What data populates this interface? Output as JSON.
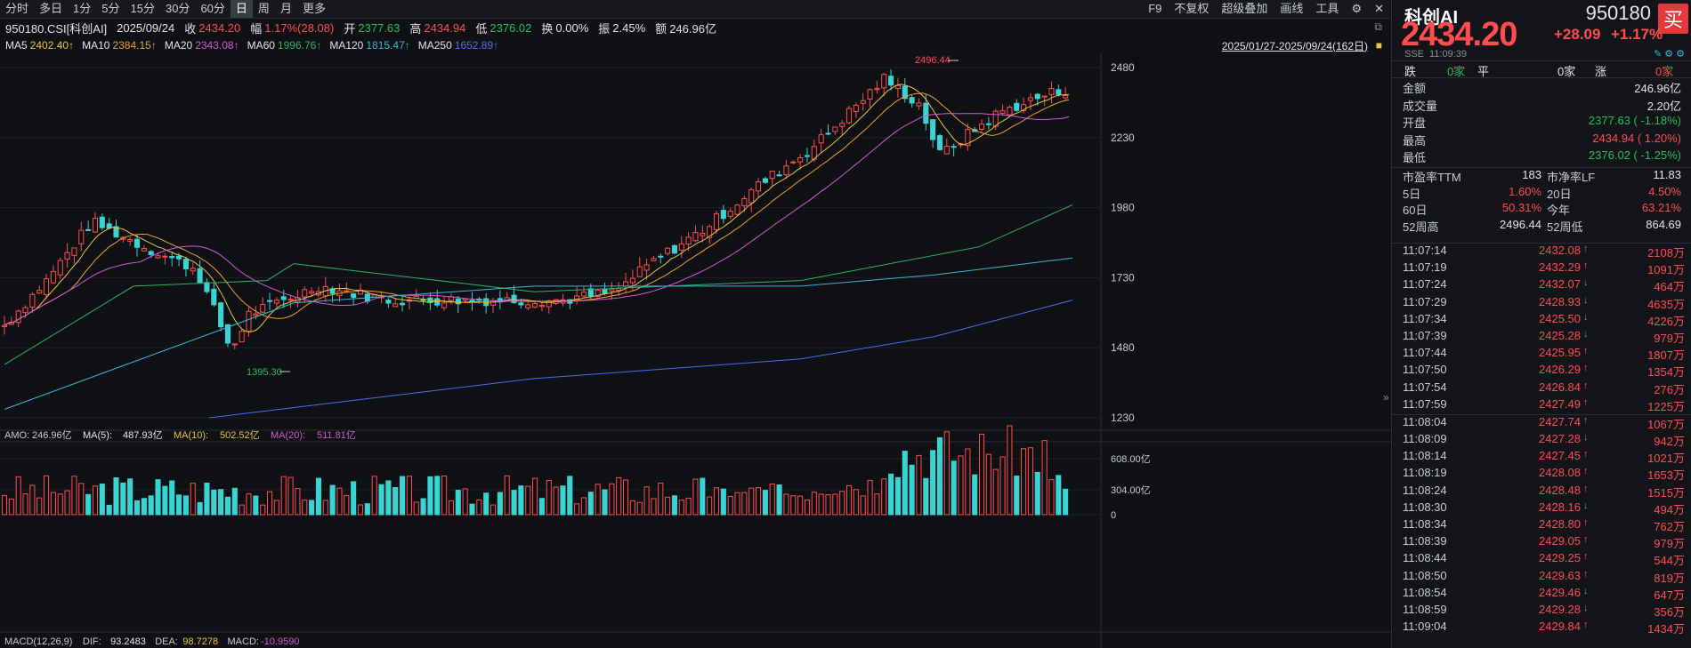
{
  "toolbar": {
    "periods": [
      "分时",
      "多日",
      "1分",
      "5分",
      "15分",
      "30分",
      "60分",
      "日",
      "周",
      "月",
      "更多"
    ],
    "active_period": "日",
    "right": [
      "F9",
      "不复权",
      "超级叠加",
      "画线",
      "工具"
    ]
  },
  "quote": {
    "code": "950180.CSI[科创AI]",
    "date": "2025/09/24",
    "close_label": "收",
    "close": "2434.20",
    "chg_label": "幅",
    "chg": "1.17%(28.08)",
    "open_label": "开",
    "open": "2377.63",
    "high_label": "高",
    "high": "2434.94",
    "low_label": "低",
    "low": "2376.02",
    "turnover_label": "换",
    "turnover": "0.00%",
    "amp_label": "振",
    "amp": "2.45%",
    "amount_label": "额",
    "amount": "246.96亿"
  },
  "ma_legend": {
    "items": [
      {
        "label": "MA5",
        "value": "2402.40↑",
        "color": "#e8c547"
      },
      {
        "label": "MA10",
        "value": "2384.15↑",
        "color": "#f0a030"
      },
      {
        "label": "MA20",
        "value": "2343.08↑",
        "color": "#d35ad6"
      },
      {
        "label": "MA60",
        "value": "1996.76↑",
        "color": "#2fb36a"
      },
      {
        "label": "MA120",
        "value": "1815.47↑",
        "color": "#3bb7d8"
      },
      {
        "label": "MA250",
        "value": "1652.89↑",
        "color": "#4f6ef0"
      }
    ],
    "range": "2025/01/27-2025/09/24(162日)"
  },
  "chart_data": {
    "type": "candlestick",
    "y_ticks": [
      "2480",
      "2230",
      "1980",
      "1730",
      "1480",
      "1230"
    ],
    "ylim": [
      1230,
      2480
    ],
    "high_label": "2496.44",
    "low_label": "1395.30",
    "volume": {
      "legend": [
        {
          "label": "AMO:",
          "value": "246.96亿",
          "color": "#c9ccd1"
        },
        {
          "label": "MA(5):",
          "value": "487.93亿",
          "color": "#e3e5e8"
        },
        {
          "label": "MA(10):",
          "value": "502.52亿",
          "color": "#e8c547"
        },
        {
          "label": "MA(20):",
          "value": "511.81亿",
          "color": "#d35ad6"
        }
      ],
      "ticks": [
        "608.00亿",
        "304.00亿",
        "0"
      ]
    },
    "macd": {
      "label": "MACD(12,26,9)",
      "dif_label": "DIF:",
      "dif": "93.2483",
      "dea_label": "DEA:",
      "dea": "98.7278",
      "macd_label": "MACD:",
      "macd": "-10.9590"
    }
  },
  "panel": {
    "name": "科创AI",
    "code": "950180",
    "buy": "买",
    "price": "2434.20",
    "change": "+28.09",
    "pct": "+1.17%",
    "exchange": "SSE",
    "time": "11:09:39",
    "breadth": {
      "down_label": "跌",
      "down": "0家",
      "flat_label": "平",
      "flat": "0家",
      "up_label": "涨",
      "up": "0家"
    },
    "stats": [
      {
        "k": "金额",
        "v": "246.96亿",
        "c": "#e3e5e8"
      },
      {
        "k": "成交量",
        "v": "2.20亿",
        "c": "#e3e5e8"
      },
      {
        "k": "开盘",
        "v": "2377.63 ( -1.18%)",
        "c": "#2bbd5d"
      },
      {
        "k": "最高",
        "v": "2434.94 ( 1.20%)",
        "c": "#ff4d4f"
      },
      {
        "k": "最低",
        "v": "2376.02 ( -1.25%)",
        "c": "#2bbd5d"
      }
    ],
    "grid": [
      {
        "k1": "市盈率TTM",
        "v1": "183",
        "c1": "#e3e5e8",
        "k2": "市净率LF",
        "v2": "11.83",
        "c2": "#e3e5e8"
      },
      {
        "k1": "5日",
        "v1": "1.60%",
        "c1": "#ff4d4f",
        "k2": "20日",
        "v2": "4.50%",
        "c2": "#ff4d4f"
      },
      {
        "k1": "60日",
        "v1": "50.31%",
        "c1": "#ff4d4f",
        "k2": "今年",
        "v2": "63.21%",
        "c2": "#ff4d4f"
      },
      {
        "k1": "52周高",
        "v1": "2496.44",
        "c1": "#e3e5e8",
        "k2": "52周低",
        "v2": "864.69",
        "c2": "#e3e5e8"
      }
    ],
    "ticks": [
      {
        "t": "11:07:14",
        "p": "2432.08",
        "d": "up",
        "v": "2108万"
      },
      {
        "t": "11:07:19",
        "p": "2432.29",
        "d": "up",
        "v": "1091万"
      },
      {
        "t": "11:07:24",
        "p": "2432.07",
        "d": "down",
        "v": "464万"
      },
      {
        "t": "11:07:29",
        "p": "2428.93",
        "d": "down",
        "v": "4635万"
      },
      {
        "t": "11:07:34",
        "p": "2425.50",
        "d": "down",
        "v": "4226万"
      },
      {
        "t": "11:07:39",
        "p": "2425.28",
        "d": "down",
        "v": "979万"
      },
      {
        "t": "11:07:44",
        "p": "2425.95",
        "d": "up",
        "v": "1807万"
      },
      {
        "t": "11:07:50",
        "p": "2426.29",
        "d": "up",
        "v": "1354万"
      },
      {
        "t": "11:07:54",
        "p": "2426.84",
        "d": "up",
        "v": "276万"
      },
      {
        "t": "11:07:59",
        "p": "2427.49",
        "d": "up",
        "v": "1225万"
      },
      {
        "t": "11:08:04",
        "p": "2427.74",
        "d": "up",
        "v": "1067万"
      },
      {
        "t": "11:08:09",
        "p": "2427.28",
        "d": "down",
        "v": "942万"
      },
      {
        "t": "11:08:14",
        "p": "2427.45",
        "d": "up",
        "v": "1021万"
      },
      {
        "t": "11:08:19",
        "p": "2428.08",
        "d": "up",
        "v": "1653万"
      },
      {
        "t": "11:08:24",
        "p": "2428.48",
        "d": "up",
        "v": "1515万"
      },
      {
        "t": "11:08:30",
        "p": "2428.16",
        "d": "down",
        "v": "494万"
      },
      {
        "t": "11:08:34",
        "p": "2428.80",
        "d": "up",
        "v": "762万"
      },
      {
        "t": "11:08:39",
        "p": "2429.05",
        "d": "up",
        "v": "979万"
      },
      {
        "t": "11:08:44",
        "p": "2429.25",
        "d": "up",
        "v": "544万"
      },
      {
        "t": "11:08:50",
        "p": "2429.63",
        "d": "up",
        "v": "819万"
      },
      {
        "t": "11:08:54",
        "p": "2429.46",
        "d": "down",
        "v": "647万"
      },
      {
        "t": "11:08:59",
        "p": "2429.28",
        "d": "down",
        "v": "356万"
      },
      {
        "t": "11:09:04",
        "p": "2429.84",
        "d": "up",
        "v": "1434万"
      }
    ]
  }
}
